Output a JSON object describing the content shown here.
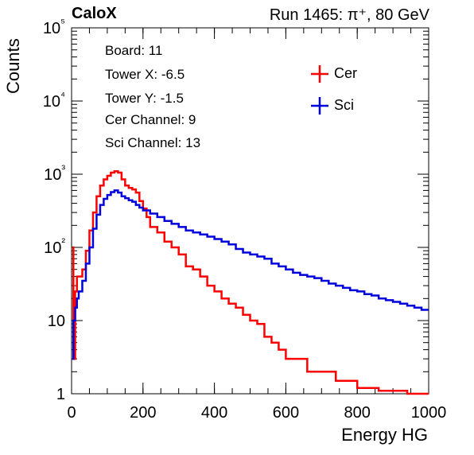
{
  "header": {
    "experiment": "CaloX",
    "run": "Run 1465:   π⁺, 80 GeV"
  },
  "info_box": [
    "Board: 11",
    "Tower X: -6.5",
    "Tower Y: -1.5",
    "Cer Channel: 9",
    "Sci Channel: 13"
  ],
  "colors": {
    "cer": "#ff0000",
    "sci": "#0000dd"
  },
  "chart_data": {
    "type": "line",
    "xlabel": "Energy HG",
    "ylabel": "Counts",
    "xlim": [
      0,
      1000
    ],
    "ylim": [
      1,
      100000
    ],
    "yscale": "log",
    "x_ticks": [
      "0",
      "200",
      "400",
      "600",
      "800",
      "1000"
    ],
    "y_ticks": [
      "1",
      "10",
      "10²",
      "10³",
      "10⁴",
      "10⁵"
    ],
    "legend_position": "top-right",
    "series": [
      {
        "name": "Cer",
        "color": "#ff0000",
        "x": [
          2,
          5,
          10,
          15,
          20,
          30,
          40,
          50,
          60,
          70,
          80,
          90,
          100,
          110,
          120,
          130,
          140,
          150,
          160,
          170,
          180,
          190,
          200,
          210,
          220,
          240,
          260,
          280,
          300,
          320,
          340,
          360,
          380,
          400,
          420,
          440,
          460,
          480,
          500,
          520,
          540,
          560,
          580,
          600,
          620,
          640,
          660,
          680,
          700,
          720,
          740,
          760,
          780,
          800,
          820,
          840,
          860,
          880,
          900,
          920,
          940,
          960,
          980,
          1000
        ],
        "y": [
          100,
          3,
          25,
          40,
          40,
          50,
          90,
          170,
          300,
          500,
          700,
          850,
          950,
          1050,
          1100,
          1050,
          850,
          700,
          650,
          620,
          560,
          430,
          340,
          260,
          190,
          160,
          120,
          100,
          80,
          55,
          50,
          40,
          30,
          25,
          20,
          17,
          15,
          12,
          10,
          9,
          6,
          5,
          4,
          3,
          3,
          3,
          2,
          2,
          2,
          2,
          1.5,
          1.5,
          1.5,
          1.2,
          1.2,
          1.2,
          1.1,
          1.1,
          1.1,
          1.1,
          1,
          1,
          1,
          1
        ]
      },
      {
        "name": "Sci",
        "color": "#0000dd",
        "x": [
          2,
          5,
          10,
          15,
          20,
          30,
          40,
          50,
          60,
          70,
          80,
          90,
          100,
          110,
          120,
          130,
          140,
          150,
          160,
          170,
          180,
          190,
          200,
          220,
          240,
          260,
          280,
          300,
          320,
          340,
          360,
          380,
          400,
          420,
          440,
          460,
          480,
          500,
          520,
          540,
          560,
          580,
          600,
          620,
          640,
          660,
          680,
          700,
          720,
          740,
          760,
          780,
          800,
          820,
          840,
          860,
          880,
          900,
          920,
          940,
          960,
          980,
          1000
        ],
        "y": [
          3,
          10,
          15,
          20,
          25,
          35,
          60,
          100,
          180,
          280,
          380,
          460,
          520,
          570,
          600,
          560,
          500,
          470,
          440,
          420,
          380,
          350,
          320,
          290,
          260,
          230,
          210,
          190,
          170,
          160,
          150,
          140,
          130,
          120,
          110,
          95,
          85,
          80,
          75,
          70,
          60,
          55,
          50,
          45,
          42,
          40,
          38,
          35,
          32,
          30,
          28,
          26,
          25,
          23,
          22,
          20,
          19,
          18,
          17,
          16,
          15,
          14,
          14
        ]
      }
    ]
  }
}
